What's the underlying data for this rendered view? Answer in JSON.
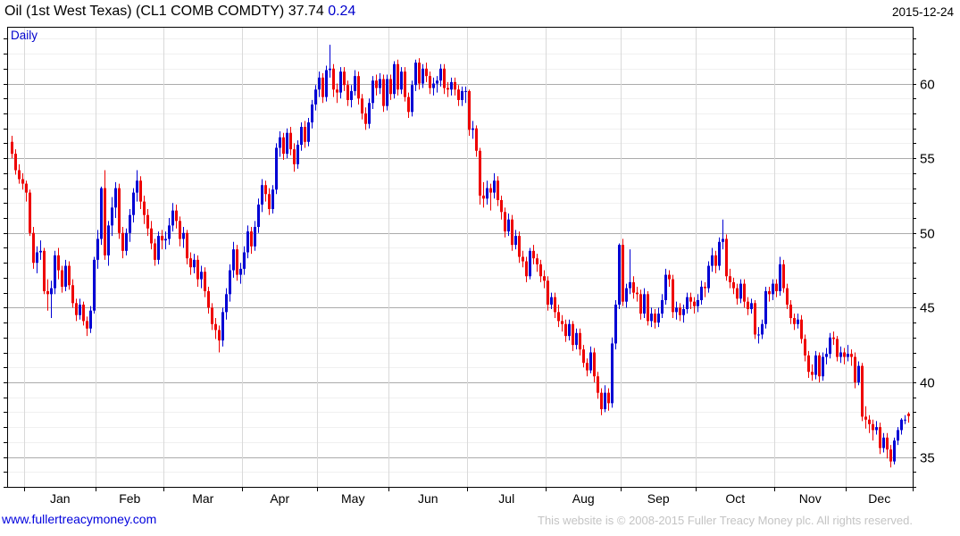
{
  "header": {
    "title": "Oil (1st West Texas) (CL1 COMB COMDTY)",
    "price": "37.74",
    "change": "0.24",
    "date": "2015-12-24"
  },
  "footer": {
    "website_link": "www.fullertreacymoney.com",
    "copyright": "This website is © 2008-2015 Fuller Treacy Money plc. All rights reserved."
  },
  "chart_data": {
    "type": "candlestick",
    "title": "Oil (1st West Texas) (CL1 COMB COMDTY)",
    "interval_label": "Daily",
    "instrument": "Oil (1st West Texas)",
    "ticker": "CL1 COMB COMDTY",
    "last_price": 37.74,
    "change": 0.24,
    "as_of_date": "2015-12-24",
    "legend_position": "none",
    "grid": true,
    "y_axis": {
      "side": "right",
      "ticks": [
        35,
        40,
        45,
        50,
        55,
        60
      ],
      "minor_step": 1,
      "range": [
        33.0,
        63.8
      ]
    },
    "x_axis": {
      "labels": [
        "Jan",
        "Feb",
        "Mar",
        "Apr",
        "May",
        "Jun",
        "Jul",
        "Aug",
        "Sep",
        "Oct",
        "Nov",
        "Dec"
      ],
      "month_start_indices": [
        4,
        24,
        43,
        65,
        86,
        106,
        128,
        150,
        171,
        192,
        214,
        234
      ]
    },
    "colors": {
      "up": "#0000d4",
      "down": "#ee0000",
      "grid_minor": "#f0f0f0",
      "grid_major": "#ababab",
      "grid_month": "#d9d9d9",
      "axis": "#000000",
      "title_accent": "#0000cc"
    },
    "candles": [
      [
        56.1,
        56.5,
        55.0,
        55.3
      ],
      [
        55.3,
        55.6,
        53.9,
        54.2
      ],
      [
        54.2,
        54.6,
        53.3,
        53.6
      ],
      [
        53.6,
        54.0,
        52.9,
        53.3
      ],
      [
        53.3,
        53.5,
        52.1,
        52.7
      ],
      [
        52.7,
        52.9,
        49.8,
        50.0
      ],
      [
        50.0,
        50.4,
        47.6,
        48.0
      ],
      [
        48.0,
        49.1,
        47.3,
        48.7
      ],
      [
        48.7,
        49.5,
        48.2,
        48.8
      ],
      [
        48.8,
        49.0,
        45.9,
        46.1
      ],
      [
        46.1,
        46.9,
        44.8,
        45.9
      ],
      [
        45.9,
        46.8,
        44.3,
        46.3
      ],
      [
        46.3,
        48.8,
        45.9,
        48.5
      ],
      [
        48.5,
        49.0,
        46.9,
        47.5
      ],
      [
        47.5,
        47.8,
        46.0,
        46.4
      ],
      [
        46.4,
        48.2,
        46.1,
        47.8
      ],
      [
        47.8,
        48.1,
        46.2,
        46.5
      ],
      [
        46.5,
        46.9,
        45.0,
        45.3
      ],
      [
        45.3,
        45.6,
        44.1,
        44.5
      ],
      [
        44.5,
        45.6,
        44.2,
        45.2
      ],
      [
        45.2,
        45.4,
        43.8,
        44.1
      ],
      [
        44.1,
        44.4,
        43.1,
        43.6
      ],
      [
        43.6,
        45.1,
        43.3,
        44.8
      ],
      [
        44.8,
        48.4,
        44.6,
        48.2
      ],
      [
        48.2,
        50.2,
        47.6,
        49.6
      ],
      [
        49.6,
        53.1,
        49.2,
        53.0
      ],
      [
        53.0,
        54.2,
        48.2,
        48.5
      ],
      [
        48.5,
        50.8,
        47.8,
        50.5
      ],
      [
        50.5,
        52.4,
        49.8,
        51.7
      ],
      [
        51.7,
        53.4,
        51.0,
        53.0
      ],
      [
        53.0,
        53.3,
        49.6,
        50.0
      ],
      [
        50.0,
        50.4,
        48.3,
        48.8
      ],
      [
        48.8,
        50.3,
        48.5,
        50.0
      ],
      [
        50.0,
        51.6,
        49.4,
        51.2
      ],
      [
        51.2,
        53.0,
        50.7,
        52.7
      ],
      [
        52.7,
        54.2,
        52.1,
        53.5
      ],
      [
        53.5,
        53.8,
        51.6,
        52.1
      ],
      [
        52.1,
        52.5,
        50.6,
        51.2
      ],
      [
        51.2,
        51.6,
        49.8,
        50.3
      ],
      [
        50.3,
        50.8,
        48.9,
        49.3
      ],
      [
        49.3,
        49.6,
        47.8,
        48.2
      ],
      [
        48.2,
        50.1,
        47.9,
        49.8
      ],
      [
        49.8,
        50.2,
        48.9,
        49.5
      ],
      [
        49.5,
        50.1,
        48.9,
        49.6
      ],
      [
        49.6,
        51.0,
        49.2,
        50.5
      ],
      [
        50.5,
        52.0,
        50.1,
        51.5
      ],
      [
        51.5,
        51.9,
        50.3,
        50.8
      ],
      [
        50.8,
        51.1,
        49.1,
        49.6
      ],
      [
        49.6,
        50.4,
        49.0,
        50.0
      ],
      [
        50.0,
        50.2,
        47.9,
        48.3
      ],
      [
        48.3,
        48.7,
        47.2,
        47.7
      ],
      [
        47.7,
        48.6,
        47.3,
        48.2
      ],
      [
        48.2,
        48.5,
        46.4,
        46.9
      ],
      [
        46.9,
        47.8,
        46.3,
        47.4
      ],
      [
        47.4,
        47.7,
        45.7,
        46.1
      ],
      [
        46.1,
        46.4,
        44.6,
        45.0
      ],
      [
        45.0,
        45.3,
        43.5,
        43.9
      ],
      [
        43.9,
        44.3,
        42.9,
        43.5
      ],
      [
        43.5,
        43.8,
        42.0,
        42.8
      ],
      [
        42.8,
        45.0,
        42.4,
        44.7
      ],
      [
        44.7,
        46.3,
        44.2,
        45.9
      ],
      [
        45.9,
        47.9,
        45.4,
        47.5
      ],
      [
        47.5,
        49.4,
        47.0,
        48.9
      ],
      [
        48.9,
        49.2,
        46.8,
        47.2
      ],
      [
        47.2,
        48.0,
        46.6,
        47.6
      ],
      [
        47.6,
        49.1,
        47.2,
        48.7
      ],
      [
        48.7,
        50.5,
        48.3,
        50.1
      ],
      [
        50.1,
        50.4,
        48.6,
        49.1
      ],
      [
        49.1,
        50.8,
        48.8,
        50.4
      ],
      [
        50.4,
        52.3,
        50.0,
        51.9
      ],
      [
        51.9,
        53.6,
        51.4,
        53.2
      ],
      [
        53.2,
        53.5,
        52.1,
        52.6
      ],
      [
        52.6,
        53.0,
        51.2,
        51.6
      ],
      [
        51.6,
        53.2,
        51.3,
        52.9
      ],
      [
        52.9,
        56.0,
        52.6,
        55.7
      ],
      [
        55.7,
        56.8,
        55.1,
        56.4
      ],
      [
        56.4,
        56.7,
        54.9,
        55.3
      ],
      [
        55.3,
        57.0,
        55.0,
        56.7
      ],
      [
        56.7,
        57.1,
        55.2,
        55.6
      ],
      [
        55.6,
        56.0,
        54.1,
        54.6
      ],
      [
        54.6,
        56.2,
        54.3,
        55.9
      ],
      [
        55.9,
        57.4,
        55.5,
        57.1
      ],
      [
        57.1,
        57.5,
        55.7,
        56.1
      ],
      [
        56.1,
        57.7,
        55.8,
        57.4
      ],
      [
        57.4,
        58.9,
        57.0,
        58.6
      ],
      [
        58.6,
        59.9,
        58.2,
        59.6
      ],
      [
        59.6,
        60.8,
        59.1,
        60.4
      ],
      [
        60.4,
        60.7,
        58.7,
        59.1
      ],
      [
        59.1,
        61.2,
        58.8,
        60.9
      ],
      [
        60.9,
        62.6,
        60.4,
        61.0
      ],
      [
        61.0,
        61.3,
        59.1,
        59.6
      ],
      [
        59.6,
        60.0,
        58.7,
        59.4
      ],
      [
        59.4,
        61.1,
        59.0,
        60.8
      ],
      [
        60.8,
        61.1,
        59.5,
        59.9
      ],
      [
        59.9,
        60.2,
        58.5,
        58.9
      ],
      [
        58.9,
        59.9,
        58.4,
        59.5
      ],
      [
        59.5,
        60.9,
        59.2,
        60.5
      ],
      [
        60.5,
        60.8,
        58.6,
        59.0
      ],
      [
        59.0,
        59.3,
        57.6,
        58.0
      ],
      [
        58.0,
        58.4,
        56.9,
        57.3
      ],
      [
        57.3,
        59.0,
        57.0,
        58.7
      ],
      [
        58.7,
        60.5,
        58.3,
        60.2
      ],
      [
        60.2,
        60.6,
        59.2,
        59.7
      ],
      [
        59.7,
        60.7,
        59.3,
        60.3
      ],
      [
        60.3,
        60.6,
        58.1,
        58.5
      ],
      [
        58.5,
        60.6,
        58.2,
        60.3
      ],
      [
        60.3,
        60.6,
        58.9,
        59.3
      ],
      [
        59.3,
        61.5,
        59.0,
        61.3
      ],
      [
        61.3,
        61.6,
        59.2,
        59.6
      ],
      [
        59.6,
        61.1,
        59.3,
        60.8
      ],
      [
        60.8,
        61.1,
        58.8,
        59.1
      ],
      [
        59.1,
        59.4,
        57.7,
        58.1
      ],
      [
        58.1,
        60.2,
        57.8,
        59.9
      ],
      [
        59.9,
        61.6,
        59.5,
        61.4
      ],
      [
        61.4,
        61.7,
        59.6,
        60.0
      ],
      [
        60.0,
        61.3,
        59.7,
        61.0
      ],
      [
        61.0,
        61.4,
        60.1,
        60.5
      ],
      [
        60.5,
        60.8,
        59.3,
        59.7
      ],
      [
        59.7,
        60.4,
        59.2,
        60.0
      ],
      [
        60.0,
        60.5,
        59.4,
        60.2
      ],
      [
        60.2,
        61.3,
        59.8,
        61.0
      ],
      [
        61.0,
        61.3,
        59.3,
        59.7
      ],
      [
        59.7,
        60.1,
        59.1,
        59.6
      ],
      [
        59.6,
        60.4,
        59.2,
        60.1
      ],
      [
        60.1,
        60.4,
        59.2,
        59.6
      ],
      [
        59.6,
        59.9,
        58.5,
        58.9
      ],
      [
        58.9,
        59.8,
        58.5,
        59.5
      ],
      [
        59.5,
        59.8,
        58.7,
        59.5
      ],
      [
        59.5,
        59.6,
        56.5,
        56.9
      ],
      [
        56.9,
        57.5,
        56.3,
        57.0
      ],
      [
        57.0,
        57.2,
        55.1,
        55.5
      ],
      [
        55.5,
        55.7,
        51.9,
        52.5
      ],
      [
        52.5,
        53.4,
        51.7,
        52.3
      ],
      [
        52.3,
        53.5,
        51.9,
        53.0
      ],
      [
        53.0,
        53.3,
        51.5,
        52.7
      ],
      [
        52.7,
        54.0,
        52.3,
        53.5
      ],
      [
        53.5,
        53.8,
        51.8,
        52.2
      ],
      [
        52.2,
        52.5,
        50.9,
        51.4
      ],
      [
        51.4,
        51.7,
        49.7,
        50.1
      ],
      [
        50.1,
        51.3,
        49.8,
        50.9
      ],
      [
        50.9,
        51.2,
        48.8,
        49.2
      ],
      [
        49.2,
        50.2,
        48.9,
        49.8
      ],
      [
        49.8,
        50.1,
        48.0,
        48.4
      ],
      [
        48.4,
        48.8,
        47.7,
        48.1
      ],
      [
        48.1,
        48.4,
        46.7,
        47.1
      ],
      [
        47.1,
        49.0,
        46.9,
        48.8
      ],
      [
        48.8,
        49.2,
        47.9,
        48.3
      ],
      [
        48.3,
        48.6,
        47.4,
        47.9
      ],
      [
        47.9,
        48.2,
        46.7,
        47.1
      ],
      [
        47.1,
        47.5,
        46.3,
        46.8
      ],
      [
        46.8,
        47.1,
        44.8,
        45.2
      ],
      [
        45.2,
        46.0,
        44.9,
        45.7
      ],
      [
        45.7,
        46.0,
        44.3,
        44.7
      ],
      [
        44.7,
        45.2,
        43.7,
        44.1
      ],
      [
        44.1,
        44.5,
        43.4,
        43.9
      ],
      [
        43.9,
        44.2,
        42.7,
        43.1
      ],
      [
        43.1,
        44.2,
        42.8,
        43.9
      ],
      [
        43.9,
        44.1,
        42.1,
        42.5
      ],
      [
        42.5,
        43.6,
        42.2,
        43.3
      ],
      [
        43.3,
        43.6,
        41.8,
        42.2
      ],
      [
        42.2,
        42.5,
        41.0,
        41.3
      ],
      [
        41.3,
        41.6,
        40.4,
        40.8
      ],
      [
        40.8,
        42.4,
        40.6,
        42.0
      ],
      [
        42.0,
        42.3,
        40.0,
        40.4
      ],
      [
        40.4,
        40.7,
        38.9,
        39.3
      ],
      [
        39.3,
        39.6,
        37.8,
        38.2
      ],
      [
        38.2,
        39.8,
        38.0,
        39.3
      ],
      [
        39.3,
        39.6,
        38.1,
        38.6
      ],
      [
        38.6,
        43.0,
        38.3,
        42.6
      ],
      [
        42.6,
        45.5,
        42.2,
        45.2
      ],
      [
        45.2,
        49.3,
        44.9,
        49.2
      ],
      [
        49.2,
        49.6,
        45.1,
        45.4
      ],
      [
        45.4,
        46.6,
        45.0,
        46.3
      ],
      [
        46.3,
        48.9,
        45.9,
        46.7
      ],
      [
        46.7,
        47.1,
        45.6,
        46.0
      ],
      [
        46.0,
        46.4,
        45.4,
        45.9
      ],
      [
        45.9,
        46.2,
        44.2,
        44.6
      ],
      [
        44.6,
        46.3,
        44.3,
        45.9
      ],
      [
        45.9,
        46.1,
        43.8,
        44.1
      ],
      [
        44.1,
        45.0,
        43.7,
        44.6
      ],
      [
        44.6,
        44.9,
        43.6,
        44.0
      ],
      [
        44.0,
        45.0,
        43.7,
        44.6
      ],
      [
        44.6,
        45.9,
        44.3,
        45.5
      ],
      [
        45.5,
        47.6,
        45.2,
        47.2
      ],
      [
        47.2,
        47.5,
        46.4,
        46.9
      ],
      [
        46.9,
        47.2,
        44.3,
        44.7
      ],
      [
        44.7,
        45.4,
        44.2,
        45.0
      ],
      [
        45.0,
        45.3,
        44.1,
        44.5
      ],
      [
        44.5,
        45.2,
        44.0,
        44.9
      ],
      [
        44.9,
        46.0,
        44.6,
        45.7
      ],
      [
        45.7,
        46.0,
        44.9,
        45.4
      ],
      [
        45.4,
        45.7,
        44.6,
        45.1
      ],
      [
        45.1,
        45.9,
        44.7,
        45.5
      ],
      [
        45.5,
        46.8,
        45.2,
        46.4
      ],
      [
        46.4,
        46.7,
        45.7,
        46.3
      ],
      [
        46.3,
        48.1,
        46.0,
        47.8
      ],
      [
        47.8,
        49.0,
        47.4,
        48.5
      ],
      [
        48.5,
        48.8,
        47.3,
        47.8
      ],
      [
        47.8,
        49.7,
        47.5,
        49.4
      ],
      [
        49.4,
        50.9,
        48.9,
        49.6
      ],
      [
        49.6,
        49.9,
        46.8,
        47.1
      ],
      [
        47.1,
        47.6,
        46.3,
        46.7
      ],
      [
        46.7,
        47.0,
        45.9,
        46.3
      ],
      [
        46.3,
        46.6,
        45.2,
        45.6
      ],
      [
        45.6,
        46.9,
        45.3,
        46.6
      ],
      [
        46.6,
        46.9,
        45.0,
        45.4
      ],
      [
        45.4,
        45.7,
        44.5,
        44.9
      ],
      [
        44.9,
        45.6,
        44.6,
        45.3
      ],
      [
        45.3,
        45.5,
        42.9,
        43.2
      ],
      [
        43.2,
        43.7,
        42.6,
        43.2
      ],
      [
        43.2,
        44.2,
        42.9,
        43.9
      ],
      [
        43.9,
        46.4,
        43.6,
        46.1
      ],
      [
        46.1,
        46.4,
        45.4,
        45.9
      ],
      [
        45.9,
        46.9,
        45.5,
        46.6
      ],
      [
        46.6,
        46.9,
        45.7,
        46.1
      ],
      [
        46.1,
        48.4,
        45.8,
        47.9
      ],
      [
        47.9,
        48.2,
        46.0,
        46.3
      ],
      [
        46.3,
        46.6,
        44.9,
        45.2
      ],
      [
        45.2,
        45.5,
        43.9,
        44.3
      ],
      [
        44.3,
        44.6,
        43.5,
        43.9
      ],
      [
        43.9,
        44.6,
        43.6,
        44.2
      ],
      [
        44.2,
        44.5,
        42.6,
        42.9
      ],
      [
        42.9,
        43.2,
        41.4,
        41.8
      ],
      [
        41.8,
        42.1,
        40.3,
        40.7
      ],
      [
        40.7,
        41.2,
        40.1,
        40.5
      ],
      [
        40.5,
        42.1,
        40.2,
        41.8
      ],
      [
        41.8,
        42.0,
        40.0,
        40.4
      ],
      [
        40.4,
        42.0,
        40.1,
        41.7
      ],
      [
        41.7,
        42.3,
        41.2,
        41.9
      ],
      [
        41.9,
        43.3,
        41.6,
        43.0
      ],
      [
        43.0,
        43.4,
        42.5,
        42.9
      ],
      [
        42.9,
        43.1,
        41.4,
        41.7
      ],
      [
        41.7,
        42.4,
        41.3,
        42.0
      ],
      [
        42.0,
        42.3,
        41.2,
        41.7
      ],
      [
        41.7,
        42.5,
        41.4,
        41.9
      ],
      [
        41.9,
        42.2,
        41.1,
        41.7
      ],
      [
        41.7,
        42.0,
        39.6,
        40.0
      ],
      [
        40.0,
        41.4,
        39.8,
        41.1
      ],
      [
        41.1,
        41.3,
        37.4,
        37.7
      ],
      [
        37.7,
        38.4,
        36.9,
        37.5
      ],
      [
        37.5,
        37.8,
        36.6,
        37.2
      ],
      [
        37.2,
        37.5,
        36.1,
        36.8
      ],
      [
        36.8,
        37.4,
        36.5,
        37.0
      ],
      [
        37.0,
        37.3,
        35.2,
        35.6
      ],
      [
        35.6,
        36.6,
        35.3,
        36.3
      ],
      [
        36.3,
        36.6,
        34.9,
        35.5
      ],
      [
        35.5,
        35.8,
        34.3,
        34.7
      ],
      [
        34.7,
        36.3,
        34.5,
        36.1
      ],
      [
        36.1,
        37.0,
        35.8,
        36.8
      ],
      [
        36.8,
        37.6,
        36.5,
        37.5
      ],
      [
        37.5,
        37.8,
        37.2,
        37.5
      ],
      [
        37.9,
        38.0,
        37.3,
        37.74
      ]
    ]
  }
}
